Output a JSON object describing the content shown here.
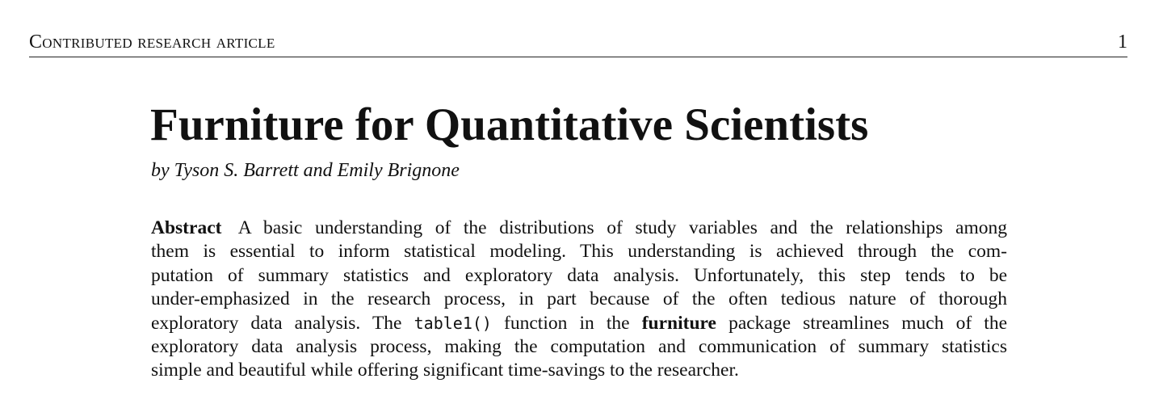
{
  "header": {
    "section": "Contributed research article",
    "page_number": "1"
  },
  "article": {
    "title": "Furniture for Quantitative Scientists",
    "byline": "by Tyson S. Barrett and Emily Brignone"
  },
  "abstract": {
    "label": "Abstract",
    "lines": [
      "A basic understanding of the distributions of study variables and the relationships among",
      "them is essential to inform statistical modeling.  This understanding is achieved through the com-",
      "putation of summary statistics and exploratory data analysis.  Unfortunately, this step tends to be",
      "under-emphasized in the research process, in part because of the often tedious nature of thorough"
    ],
    "line5_before": "exploratory data analysis. The ",
    "function_name": "table1()",
    "line5_middle": " function in the ",
    "package_name": "furniture",
    "line5_after": " package streamlines much of the",
    "line6": "exploratory data analysis process, making the computation and communication of summary statistics",
    "line7": "simple and beautiful while offering significant time-savings to the researcher."
  }
}
